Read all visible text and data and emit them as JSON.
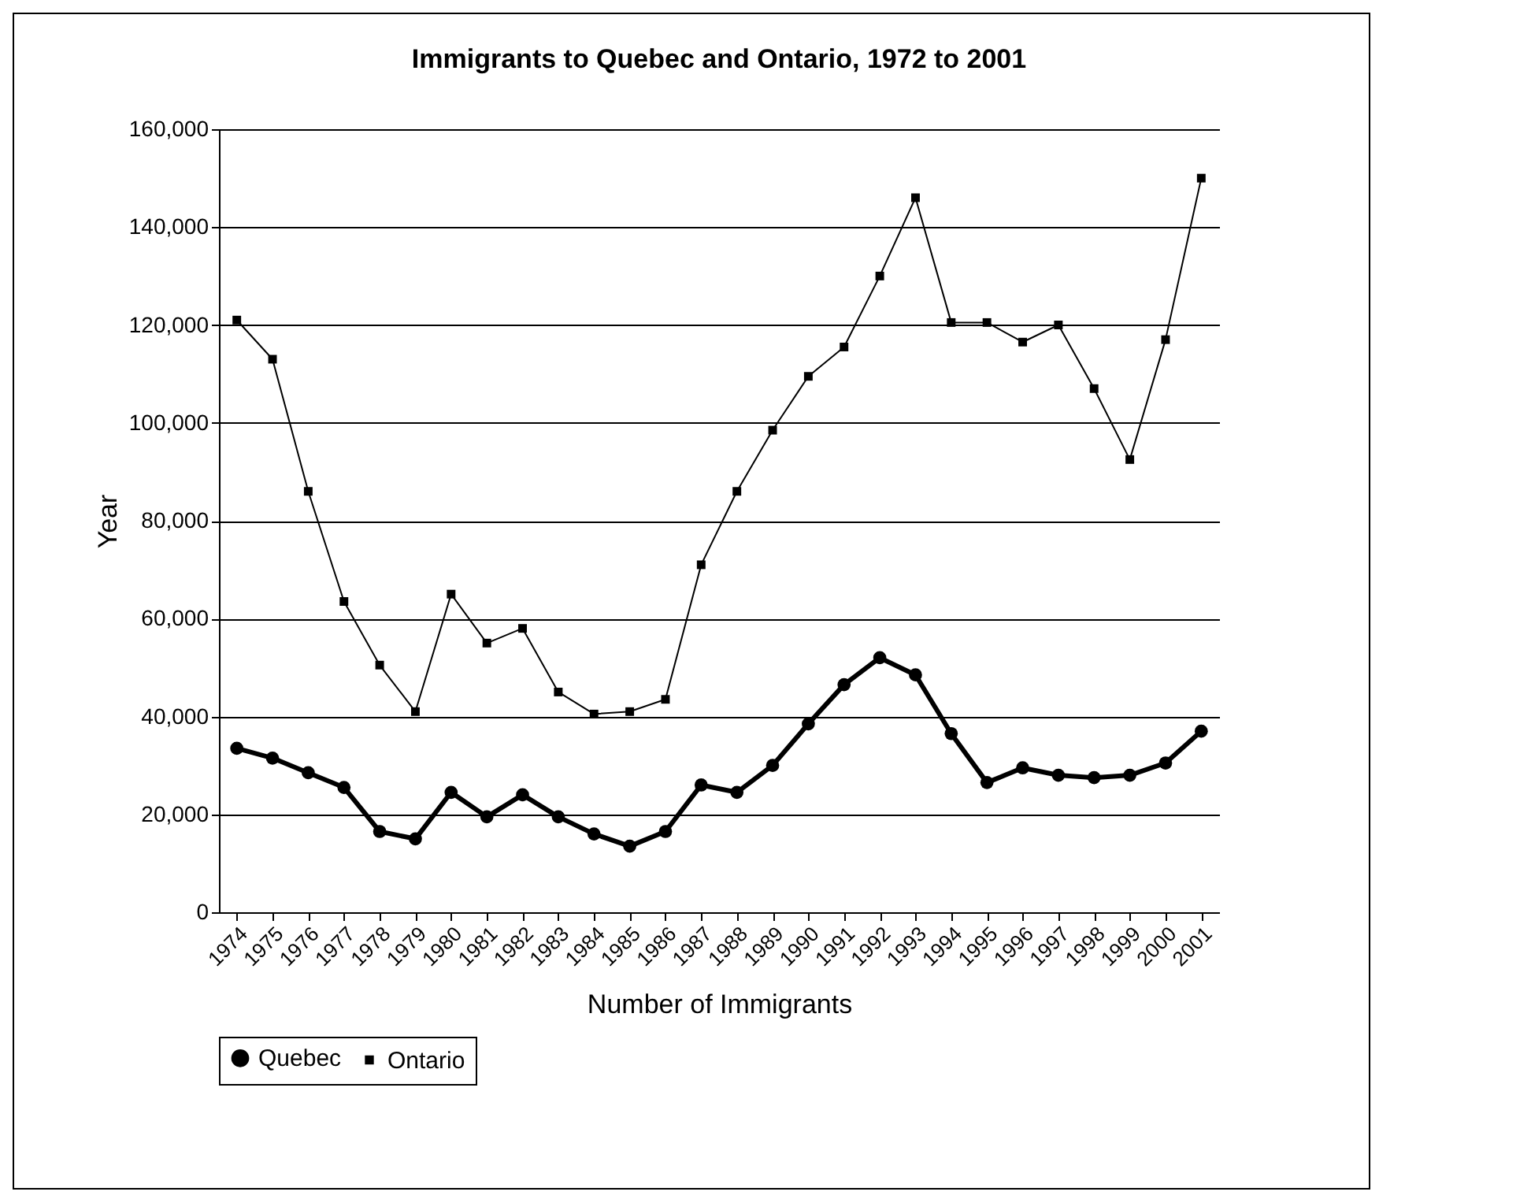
{
  "chart_data": {
    "type": "line",
    "title": "Immigrants to Quebec and Ontario, 1972 to 2001",
    "xlabel": "Number of Immigrants",
    "ylabel": "Year",
    "categories": [
      "1974",
      "1975",
      "1976",
      "1977",
      "1978",
      "1979",
      "1980",
      "1981",
      "1982",
      "1983",
      "1984",
      "1985",
      "1986",
      "1987",
      "1988",
      "1989",
      "1990",
      "1991",
      "1992",
      "1993",
      "1994",
      "1995",
      "1996",
      "1997",
      "1998",
      "1999",
      "2000",
      "2001"
    ],
    "series": [
      {
        "name": "Quebec",
        "color": "#000000",
        "marker": "circle",
        "values": [
          33500,
          31500,
          28500,
          25500,
          16500,
          15000,
          24500,
          19500,
          24000,
          19500,
          16000,
          13500,
          16500,
          26000,
          24500,
          30000,
          38500,
          46500,
          52000,
          48500,
          36500,
          26500,
          29500,
          28000,
          27500,
          28000,
          30500,
          37000
        ]
      },
      {
        "name": "Ontario",
        "color": "#000000",
        "marker": "square",
        "values": [
          121000,
          113000,
          86000,
          63500,
          50500,
          41000,
          65000,
          55000,
          58000,
          45000,
          40500,
          41000,
          43500,
          71000,
          86000,
          98500,
          109500,
          115500,
          130000,
          146000,
          120500,
          120500,
          116500,
          120000,
          107000,
          92500,
          117000,
          150000
        ]
      }
    ],
    "ylim": [
      0,
      160000
    ],
    "yticks": [
      0,
      {
        "value": 20000,
        "label": "20,000"
      },
      {
        "value": 40000,
        "label": "40,000"
      },
      {
        "value": 60000,
        "label": "60,000"
      },
      {
        "value": 80000,
        "label": "80,000"
      },
      {
        "value": 100000,
        "label": "100,000"
      },
      {
        "value": 120000,
        "label": "120,000"
      },
      {
        "value": 140000,
        "label": "140,000"
      },
      {
        "value": 160000,
        "label": "160,000"
      }
    ],
    "grid": "y",
    "legend": "bottom"
  }
}
